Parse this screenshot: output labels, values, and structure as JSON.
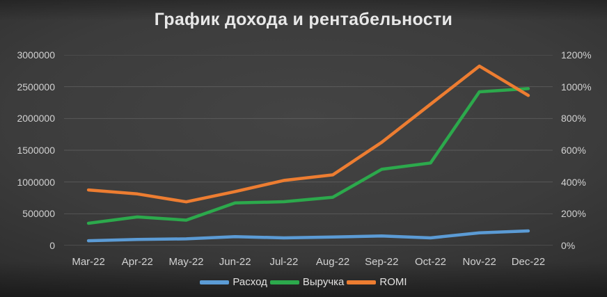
{
  "title": "График дохода и рентабельности",
  "chart_data": {
    "type": "line",
    "categories": [
      "Mar-22",
      "Apr-22",
      "May-22",
      "Jun-22",
      "Jul-22",
      "Aug-22",
      "Sep-22",
      "Oct-22",
      "Nov-22",
      "Dec-22"
    ],
    "series": [
      {
        "name": "Расход",
        "axis": "left",
        "color": "#5B9BD5",
        "values": [
          75000,
          95000,
          105000,
          140000,
          120000,
          135000,
          150000,
          120000,
          200000,
          230000
        ]
      },
      {
        "name": "Выручка",
        "axis": "left",
        "color": "#2CA94C",
        "values": [
          350000,
          450000,
          400000,
          670000,
          690000,
          760000,
          1200000,
          1300000,
          2420000,
          2470000
        ]
      },
      {
        "name": "ROMI",
        "axis": "right",
        "color": "#ED7D31",
        "unit": "%",
        "values": [
          350,
          325,
          275,
          340,
          410,
          445,
          650,
          890,
          1130,
          945
        ]
      }
    ],
    "left_axis": {
      "min": 0,
      "max": 3000000,
      "step": 500000,
      "tick_labels": [
        "0",
        "500000",
        "1000000",
        "1500000",
        "2000000",
        "2500000",
        "3000000"
      ]
    },
    "right_axis": {
      "min": 0,
      "max": 1200,
      "step": 200,
      "tick_labels": [
        "0%",
        "200%",
        "400%",
        "600%",
        "800%",
        "1000%",
        "1200%"
      ]
    },
    "grid": "horizontal",
    "legend_position": "bottom"
  },
  "colors": {
    "background_center": "#444444",
    "background_edge": "#1e1e1e",
    "grid_line": "rgba(255,255,255,0.14)",
    "grid_line_zero": "rgba(255,255,255,0.22)",
    "axis_text": "#d2d2d2",
    "title_text": "#e8e8e8"
  }
}
